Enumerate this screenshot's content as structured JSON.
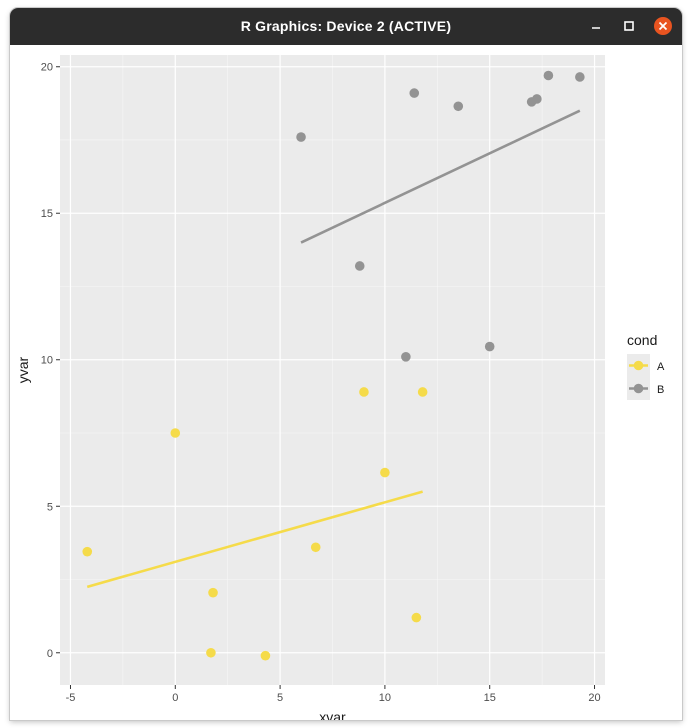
{
  "window": {
    "title": "R Graphics: Device 2 (ACTIVE)"
  },
  "icons": {
    "minimize": "minimize-icon",
    "maximize": "maximize-icon",
    "close": "close-icon"
  },
  "colors": {
    "panel_bg": "#EBEBEB",
    "grid_major": "#FFFFFF",
    "series_A": "#F5DB4A",
    "series_B": "#939393",
    "close_button": "#E95420",
    "titlebar": "#2C2C2C"
  },
  "chart_data": {
    "type": "scatter",
    "title": "",
    "xlabel": "xvar",
    "ylabel": "yvar",
    "xlim": [
      -5.5,
      20.5
    ],
    "ylim": [
      -1.1,
      20.4
    ],
    "x_ticks": [
      -5,
      0,
      5,
      10,
      15,
      20
    ],
    "y_ticks": [
      0,
      5,
      10,
      15,
      20
    ],
    "x_tick_labels": [
      "-5",
      "0",
      "5",
      "10",
      "15",
      "20"
    ],
    "y_tick_labels": [
      "0",
      "5",
      "10",
      "15",
      "20"
    ],
    "grid": true,
    "legend": {
      "title": "cond",
      "placement": "right",
      "entries": [
        "A",
        "B"
      ]
    },
    "series": [
      {
        "name": "A",
        "color": "#F5DB4A",
        "points": [
          [
            -4.2,
            3.45
          ],
          [
            0.0,
            7.5
          ],
          [
            1.7,
            0.0
          ],
          [
            1.8,
            2.05
          ],
          [
            4.3,
            -0.1
          ],
          [
            6.7,
            3.6
          ],
          [
            9.0,
            8.9
          ],
          [
            10.0,
            6.15
          ],
          [
            11.5,
            1.2
          ],
          [
            11.8,
            8.9
          ]
        ],
        "trend": [
          [
            -4.2,
            2.25
          ],
          [
            11.8,
            5.5
          ]
        ]
      },
      {
        "name": "B",
        "color": "#939393",
        "points": [
          [
            6.0,
            17.6
          ],
          [
            8.8,
            13.2
          ],
          [
            11.0,
            10.1
          ],
          [
            11.4,
            19.1
          ],
          [
            13.5,
            18.65
          ],
          [
            15.0,
            10.45
          ],
          [
            17.0,
            18.8
          ],
          [
            17.25,
            18.9
          ],
          [
            17.8,
            19.7
          ],
          [
            19.3,
            19.65
          ]
        ],
        "trend": [
          [
            6.0,
            14.0
          ],
          [
            19.3,
            18.5
          ]
        ]
      }
    ]
  }
}
